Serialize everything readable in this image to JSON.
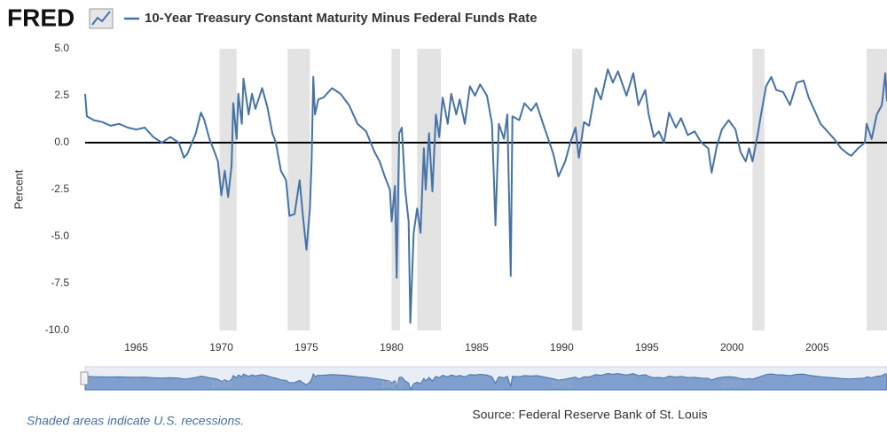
{
  "chart_data": {
    "type": "line",
    "logo": "FRED",
    "title": "10-Year Treasury Constant Maturity Minus Federal Funds Rate",
    "y_label": "Percent",
    "note": "Shaded areas indicate U.S. recessions.",
    "source": "Source: Federal Reserve Bank of St. Louis",
    "xlim": [
      1962,
      2009.1
    ],
    "xticks": [
      1965,
      1970,
      1975,
      1980,
      1985,
      1990,
      1995,
      2000,
      2005
    ],
    "navigator_xticks": [
      1970,
      1980,
      1990,
      2000
    ],
    "ylim": [
      -10,
      5
    ],
    "yticks": [
      {
        "value": 5,
        "label": "5.0"
      },
      2.5,
      {
        "value": 0,
        "label": "0.0"
      },
      -2.5,
      {
        "value": -5,
        "label": "-5.0"
      },
      -7.5,
      {
        "value": -10,
        "label": "-10.0"
      }
    ],
    "grid": false,
    "recessions": [
      [
        1969.9,
        1970.9
      ],
      [
        1973.9,
        1975.2
      ],
      [
        1980.0,
        1980.5
      ],
      [
        1981.5,
        1982.9
      ],
      [
        1990.6,
        1991.2
      ],
      [
        2001.2,
        2001.9
      ],
      [
        2007.9,
        2009.1
      ]
    ],
    "recession_color": "#e3e3e3",
    "x": [
      1962.0,
      1962.1,
      1962.5,
      1963,
      1963.5,
      1964,
      1964.5,
      1965,
      1965.5,
      1966,
      1966.5,
      1967,
      1967.5,
      1967.8,
      1968,
      1968.5,
      1968.8,
      1969,
      1969.3,
      1969.6,
      1969.8,
      1970,
      1970.2,
      1970.4,
      1970.6,
      1970.7,
      1970.9,
      1971.0,
      1971.2,
      1971.3,
      1971.6,
      1971.8,
      1972,
      1972.4,
      1972.7,
      1973,
      1973.2,
      1973.5,
      1973.8,
      1974,
      1974.3,
      1974.6,
      1974.8,
      1975.0,
      1975.2,
      1975.3,
      1975.4,
      1975.5,
      1975.7,
      1976,
      1976.5,
      1977,
      1977.5,
      1978,
      1978.5,
      1979,
      1979.3,
      1979.6,
      1979.9,
      1980.0,
      1980.2,
      1980.3,
      1980.45,
      1980.6,
      1980.8,
      1981.0,
      1981.1,
      1981.3,
      1981.5,
      1981.7,
      1981.9,
      1982.0,
      1982.2,
      1982.4,
      1982.6,
      1982.8,
      1983,
      1983.3,
      1983.5,
      1983.8,
      1984,
      1984.3,
      1984.6,
      1984.9,
      1985.2,
      1985.6,
      1985.9,
      1986.1,
      1986.3,
      1986.6,
      1986.8,
      1987.0,
      1987.1,
      1987.5,
      1987.8,
      1988.2,
      1988.5,
      1988.9,
      1989.2,
      1989.5,
      1989.8,
      1990.2,
      1990.5,
      1990.8,
      1991.0,
      1991.3,
      1991.6,
      1992,
      1992.3,
      1992.7,
      1993,
      1993.3,
      1993.8,
      1994.2,
      1994.5,
      1994.9,
      1995.1,
      1995.4,
      1995.7,
      1996,
      1996.3,
      1996.7,
      1997,
      1997.4,
      1997.8,
      1998.2,
      1998.6,
      1998.8,
      1999.1,
      1999.4,
      1999.8,
      2000.2,
      2000.5,
      2000.8,
      2001.0,
      2001.2,
      2001.5,
      2001.7,
      2002.0,
      2002.3,
      2002.6,
      2003.0,
      2003.4,
      2003.8,
      2004.2,
      2004.5,
      2004.8,
      2005.2,
      2005.6,
      2006.0,
      2006.4,
      2006.8,
      2007.0,
      2007.4,
      2007.8,
      2007.9,
      2008.2,
      2008.5,
      2008.8,
      2009.0,
      2009.1
    ],
    "series": [
      {
        "name": "10-Year Treasury Constant Maturity Minus Federal Funds Rate",
        "color": "#4572a7",
        "values": [
          2.6,
          1.4,
          1.2,
          1.1,
          0.9,
          1.0,
          0.8,
          0.7,
          0.8,
          0.3,
          0.0,
          0.3,
          0.0,
          -0.8,
          -0.6,
          0.5,
          1.6,
          1.2,
          0.2,
          -0.5,
          -1.0,
          -2.8,
          -1.5,
          -2.9,
          -1.2,
          2.1,
          0.2,
          2.6,
          1.0,
          3.4,
          1.5,
          2.6,
          1.8,
          2.9,
          1.9,
          0.5,
          0.0,
          -1.5,
          -2.0,
          -3.9,
          -3.8,
          -2.0,
          -4.0,
          -5.7,
          -3.5,
          -1.0,
          3.5,
          1.5,
          2.3,
          2.4,
          2.9,
          2.6,
          2.0,
          1.0,
          0.6,
          -0.5,
          -1.0,
          -1.8,
          -2.5,
          -4.2,
          -2.3,
          -7.2,
          0.5,
          0.8,
          -2.5,
          -4.2,
          -9.6,
          -4.8,
          -3.5,
          -4.8,
          -0.3,
          -2.5,
          0.5,
          -2.6,
          1.5,
          0.3,
          2.4,
          1.0,
          2.6,
          1.5,
          2.3,
          1.0,
          3.0,
          2.5,
          3.1,
          2.5,
          1.0,
          -4.4,
          1.0,
          0.2,
          1.5,
          -7.1,
          1.4,
          1.2,
          2.1,
          1.7,
          2.1,
          1.0,
          0.2,
          -0.6,
          -1.8,
          -1.0,
          0.0,
          0.8,
          -0.8,
          1.1,
          0.9,
          2.9,
          2.3,
          3.9,
          3.2,
          3.8,
          2.5,
          3.7,
          2.0,
          2.8,
          1.5,
          0.3,
          0.6,
          0.0,
          1.6,
          0.8,
          1.3,
          0.4,
          0.6,
          0.0,
          -0.3,
          -1.6,
          -0.2,
          0.7,
          1.2,
          0.7,
          -0.5,
          -1.0,
          -0.3,
          -1.0,
          0.4,
          1.5,
          3.0,
          3.5,
          2.8,
          2.7,
          2.0,
          3.2,
          3.3,
          2.4,
          1.8,
          1.0,
          0.6,
          0.2,
          -0.3,
          -0.6,
          -0.7,
          -0.3,
          0.0,
          1.0,
          0.2,
          1.5,
          2.0,
          3.7,
          2.2
        ]
      }
    ]
  }
}
